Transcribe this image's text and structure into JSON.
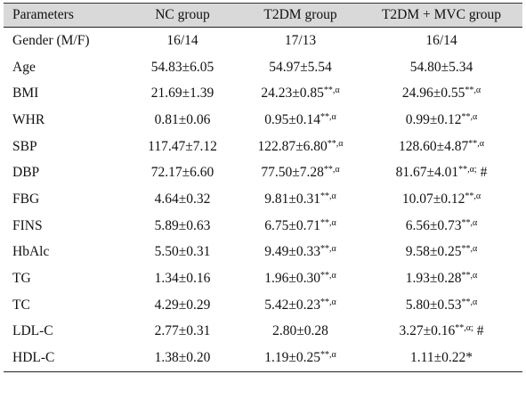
{
  "table": {
    "header": [
      "Parameters",
      "NC group",
      "T2DM group",
      "T2DM + MVC group"
    ],
    "rows": [
      [
        "Gender (M/F)",
        "16/14",
        "17/13",
        "16/14"
      ],
      [
        "Age",
        "54.83±6.05",
        "54.97±5.54",
        "54.80±5.34"
      ],
      [
        "BMI",
        "21.69±1.39",
        {
          "text": "24.23±0.85",
          "sup": "**,α"
        },
        {
          "text": "24.96±0.55",
          "sup": "**,α"
        }
      ],
      [
        "WHR",
        "0.81±0.06",
        {
          "text": "0.95±0.14",
          "sup": "**,α"
        },
        {
          "text": "0.99±0.12",
          "sup": "**,α"
        }
      ],
      [
        "SBP",
        "117.47±7.12",
        {
          "text": "122.87±6.80",
          "sup": "**,α"
        },
        {
          "text": "128.60±4.87",
          "sup": "**,α"
        }
      ],
      [
        "DBP",
        "72.17±6.60",
        {
          "text": "77.50±7.28",
          "sup": "**,α"
        },
        {
          "text": "81.67±4.01",
          "sup": "**,α;",
          "suffix": " #"
        }
      ],
      [
        "FBG",
        "4.64±0.32",
        {
          "text": "9.81±0.31",
          "sup": "**,α"
        },
        {
          "text": "10.07±0.12",
          "sup": "**,α"
        }
      ],
      [
        "FINS",
        "5.89±0.63",
        {
          "text": "6.75±0.71",
          "sup": "**,α"
        },
        {
          "text": "6.56±0.73",
          "sup": "**,α"
        }
      ],
      [
        "HbAlc",
        "5.50±0.31",
        {
          "text": "9.49±0.33",
          "sup": "**,α"
        },
        {
          "text": "9.58±0.25",
          "sup": "**,α"
        }
      ],
      [
        "TG",
        "1.34±0.16",
        {
          "text": "1.96±0.30",
          "sup": "**,α"
        },
        {
          "text": "1.93±0.28",
          "sup": "**,α"
        }
      ],
      [
        "TC",
        "4.29±0.29",
        {
          "text": "5.42±0.23",
          "sup": "**,α"
        },
        {
          "text": "5.80±0.53",
          "sup": "**,α"
        }
      ],
      [
        "LDL-C",
        "2.77±0.31",
        "2.80±0.28",
        {
          "text": "3.27±0.16",
          "sup": "**,α;",
          "suffix": " #"
        }
      ],
      [
        "HDL-C",
        "1.38±0.20",
        {
          "text": "1.19±0.25",
          "sup": "**,α"
        },
        "1.11±0.22*"
      ]
    ]
  }
}
